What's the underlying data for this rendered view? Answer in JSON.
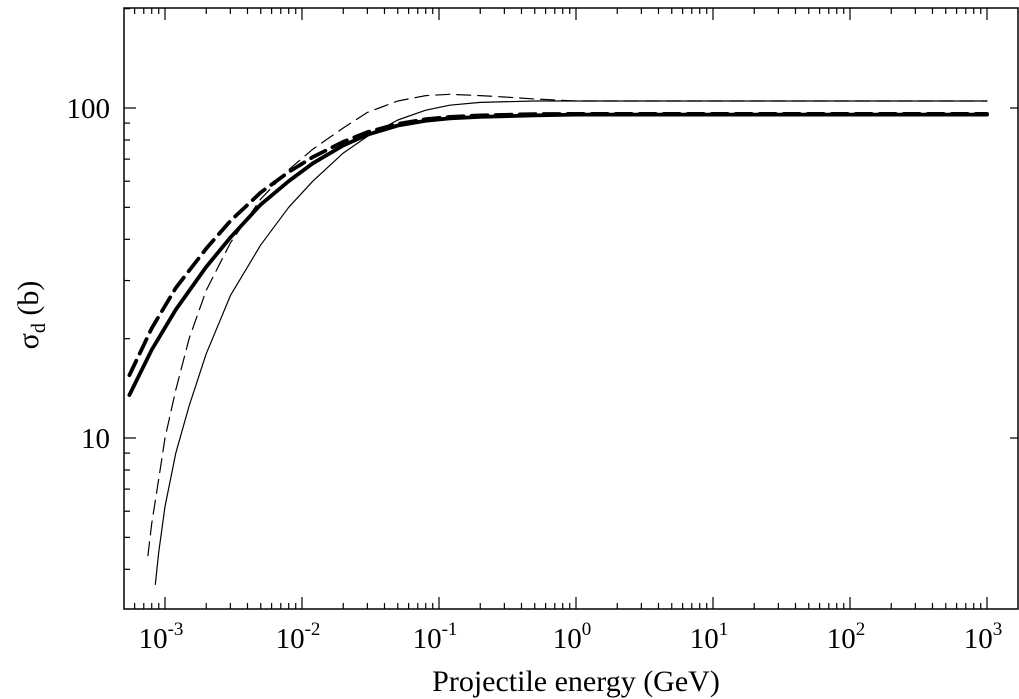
{
  "chart_data": {
    "type": "line",
    "title": "",
    "xlabel": "Projectile energy (GeV)",
    "ylabel_main": "σ",
    "ylabel_sub": "d",
    "ylabel_rest": " (b)",
    "xscale": "log",
    "yscale": "log",
    "xlim": [
      0.0004,
      2000
    ],
    "ylim": [
      3.5,
      200
    ],
    "grid": false,
    "x_ticks": [
      {
        "base": "10",
        "exp": "-3",
        "value": 0.001
      },
      {
        "base": "10",
        "exp": "-2",
        "value": 0.01
      },
      {
        "base": "10",
        "exp": "-1",
        "value": 0.1
      },
      {
        "base": "10",
        "exp": "0",
        "value": 1
      },
      {
        "base": "10",
        "exp": "1",
        "value": 10
      },
      {
        "base": "10",
        "exp": "2",
        "value": 100
      },
      {
        "base": "10",
        "exp": "3",
        "value": 1000
      }
    ],
    "y_ticks": [
      {
        "label": "10",
        "value": 10
      },
      {
        "label": "100",
        "value": 100
      }
    ],
    "series": [
      {
        "style": "thick-solid",
        "x": [
          0.00055,
          0.0008,
          0.0012,
          0.002,
          0.003,
          0.005,
          0.008,
          0.012,
          0.02,
          0.03,
          0.05,
          0.08,
          0.12,
          0.2,
          0.5,
          1,
          10,
          100,
          1000
        ],
        "y": [
          13.5,
          18.5,
          24.5,
          33,
          40.5,
          51,
          60,
          68,
          77,
          83,
          88.5,
          91.5,
          93,
          94,
          95,
          95.5,
          95.5,
          95.5,
          95.5
        ]
      },
      {
        "style": "thick-dashed",
        "x": [
          0.00055,
          0.0008,
          0.0012,
          0.002,
          0.003,
          0.005,
          0.008,
          0.012,
          0.02,
          0.03,
          0.05,
          0.08,
          0.12,
          0.2,
          0.5,
          1,
          10,
          100,
          1000
        ],
        "y": [
          15.5,
          21.5,
          28.5,
          37.5,
          45.5,
          55.5,
          64,
          71,
          79,
          84.5,
          89.5,
          92.5,
          94,
          95,
          95.8,
          96,
          96,
          96,
          96
        ]
      },
      {
        "style": "thin-solid",
        "x": [
          0.00085,
          0.0009,
          0.001,
          0.0012,
          0.0015,
          0.002,
          0.003,
          0.005,
          0.008,
          0.012,
          0.02,
          0.03,
          0.05,
          0.08,
          0.12,
          0.2,
          0.5,
          1,
          10,
          100,
          1000
        ],
        "y": [
          3.6,
          4.5,
          6.2,
          9,
          12.5,
          18,
          27,
          38.5,
          50,
          60,
          73,
          82,
          92,
          98.5,
          102,
          104,
          105,
          105,
          105,
          105,
          105
        ]
      },
      {
        "style": "thin-dashed",
        "x": [
          0.00075,
          0.0008,
          0.0009,
          0.001,
          0.0012,
          0.0015,
          0.002,
          0.003,
          0.005,
          0.008,
          0.012,
          0.02,
          0.03,
          0.05,
          0.08,
          0.12,
          0.2,
          0.3,
          0.5,
          1,
          10,
          100,
          1000
        ],
        "y": [
          4.4,
          5.5,
          7.5,
          10,
          14,
          20,
          28,
          39,
          53,
          65,
          75,
          87,
          97,
          105,
          109,
          110,
          109,
          108,
          106.5,
          105,
          105,
          105,
          105
        ]
      }
    ]
  }
}
